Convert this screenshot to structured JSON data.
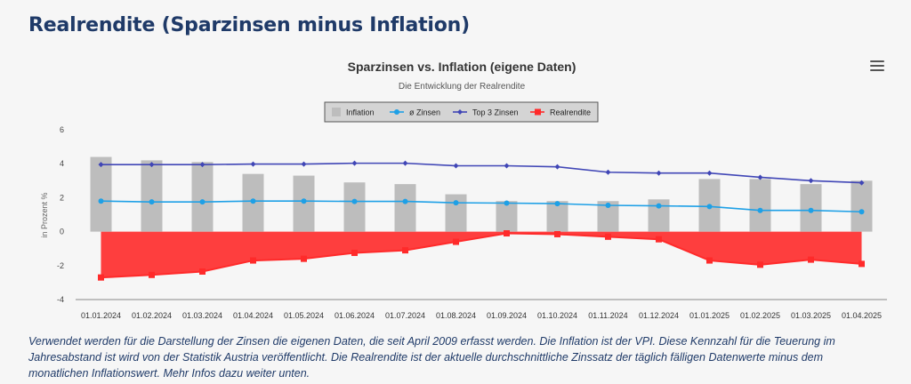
{
  "page": {
    "heading": "Realrendite (Sparzinsen minus Inflation)",
    "footnote": "Verwendet werden für die Darstellung der Zinsen die eigenen Daten, die seit April 2009 erfasst werden. Die Inflation ist der VPI. Diese Kennzahl für die Teuerung im Jahresabstand ist wird von der Statistik Austria veröffentlicht. Die Realrendite ist der aktuelle durchschnittliche Zinssatz der täglich fälligen Datenwerte minus dem monatlichen Inflationswert. Mehr Infos dazu weiter unten."
  },
  "chart_menu_icon": "hamburger-menu-icon",
  "chart_data": {
    "type": "bar",
    "title": "Sparzinsen vs. Inflation (eigene Daten)",
    "subtitle": "Die Entwicklung der Realrendite",
    "ylabel": "in Prozent %",
    "xlabel": "",
    "ylim": [
      -4,
      6
    ],
    "yticks": [
      6,
      4,
      2,
      0,
      -2,
      -4
    ],
    "grid": false,
    "legend_position": "top-center",
    "categories": [
      "01.01.2024",
      "01.02.2024",
      "01.03.2024",
      "01.04.2024",
      "01.05.2024",
      "01.06.2024",
      "01.07.2024",
      "01.08.2024",
      "01.09.2024",
      "01.10.2024",
      "01.11.2024",
      "01.12.2024",
      "01.01.2025",
      "01.02.2025",
      "01.03.2025",
      "01.04.2025"
    ],
    "series": [
      {
        "name": "Inflation",
        "type": "bar",
        "color": "#bdbdbd",
        "values": [
          4.4,
          4.2,
          4.1,
          3.4,
          3.3,
          2.9,
          2.8,
          2.2,
          1.8,
          1.8,
          1.8,
          1.9,
          3.1,
          3.1,
          2.8,
          3.0
        ]
      },
      {
        "name": "ø Zinsen",
        "type": "line",
        "color": "#1ea0e6",
        "values": [
          1.8,
          1.75,
          1.75,
          1.8,
          1.8,
          1.78,
          1.78,
          1.7,
          1.68,
          1.65,
          1.55,
          1.52,
          1.48,
          1.25,
          1.25,
          1.17
        ]
      },
      {
        "name": "Top 3 Zinsen",
        "type": "line",
        "color": "#4046b6",
        "values": [
          3.95,
          3.95,
          3.95,
          3.98,
          3.98,
          4.03,
          4.03,
          3.88,
          3.88,
          3.82,
          3.5,
          3.45,
          3.45,
          3.2,
          3.0,
          2.88
        ]
      },
      {
        "name": "Realrendite",
        "type": "area",
        "color": "#ff2a2a",
        "values": [
          -2.7,
          -2.55,
          -2.35,
          -1.7,
          -1.6,
          -1.25,
          -1.1,
          -0.6,
          -0.1,
          -0.15,
          -0.3,
          -0.45,
          -1.7,
          -1.95,
          -1.65,
          -1.9
        ]
      }
    ]
  }
}
